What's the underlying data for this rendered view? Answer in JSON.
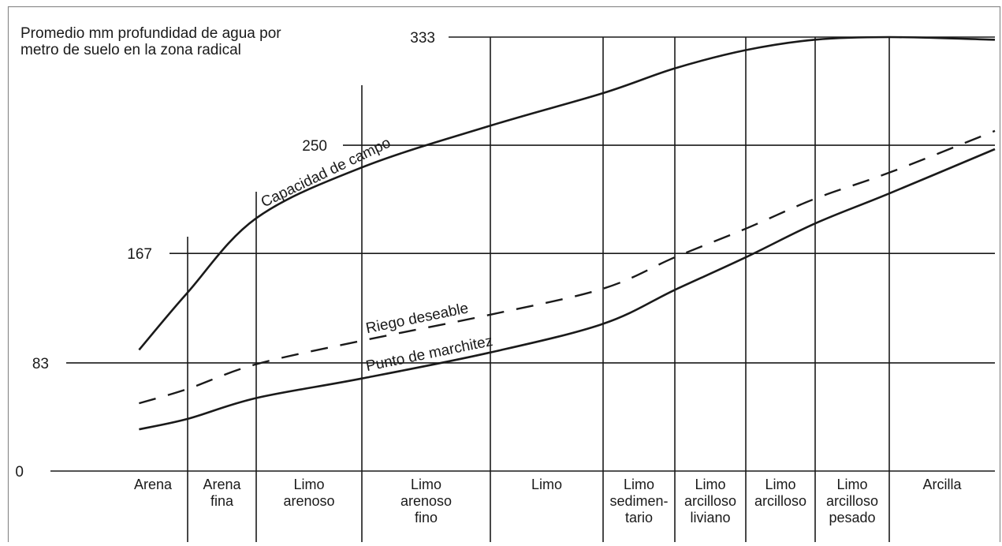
{
  "chart_data": {
    "type": "line",
    "title": "",
    "ylabel": "Promedio mm profundidad de agua por metro de suelo en la zona radical",
    "ylabel_lines": [
      "Promedio mm profundidad de agua por",
      "metro de suelo en la zona radical"
    ],
    "xlabel": "",
    "ylim": [
      0,
      333
    ],
    "yticks": [
      "0",
      "83",
      "167",
      "250",
      "333"
    ],
    "ytick_values": [
      0,
      83,
      167,
      250,
      333
    ],
    "grid": true,
    "legend": "none",
    "categories": [
      "Arena",
      "Arena fina",
      "Limo arenoso",
      "Limo arenoso fino",
      "Limo",
      "Limo sedimentario",
      "Limo arcilloso liviano",
      "Limo arcilloso",
      "Limo arcilloso pesado",
      "Arcilla"
    ],
    "category_lines": [
      [
        "Arena"
      ],
      [
        "Arena",
        "fina"
      ],
      [
        "Limo",
        "arenoso"
      ],
      [
        "Limo",
        "arenoso",
        "fino"
      ],
      [
        "Limo"
      ],
      [
        "Limo",
        "sedimen-",
        "tario"
      ],
      [
        "Limo",
        "arcilloso",
        "liviano"
      ],
      [
        "Limo",
        "arcilloso"
      ],
      [
        "Limo",
        "arcilloso",
        "pesado"
      ],
      [
        "Arcilla"
      ]
    ],
    "series": [
      {
        "name": "Capacidad de campo",
        "style": "solid",
        "x": [
          0.3,
          1.0,
          2.0,
          3.0,
          4.0,
          5.0,
          6.0,
          7.0,
          8.0,
          9.0,
          10.0
        ],
        "values": [
          93,
          137,
          194,
          233,
          265,
          290,
          309,
          323,
          331,
          333,
          331
        ]
      },
      {
        "name": "Riego deseable",
        "style": "dashed",
        "x": [
          0.3,
          1.0,
          2.0,
          3.0,
          4.0,
          5.0,
          6.0,
          7.0,
          8.0,
          9.0,
          10.0
        ],
        "values": [
          52,
          63,
          82,
          100,
          120,
          140,
          164,
          186,
          209,
          229,
          261
        ]
      },
      {
        "name": "Punto de marchitez",
        "style": "solid",
        "x": [
          0.3,
          1.0,
          2.0,
          3.0,
          4.0,
          5.0,
          6.0,
          7.0,
          8.0,
          9.0,
          10.0
        ],
        "values": [
          32,
          40,
          56,
          71,
          91,
          113,
          139,
          164,
          190,
          213,
          247
        ]
      }
    ],
    "colors": {
      "ink": "#1a1a1a",
      "frame": "#8a8a8a",
      "background": "#ffffff"
    }
  }
}
